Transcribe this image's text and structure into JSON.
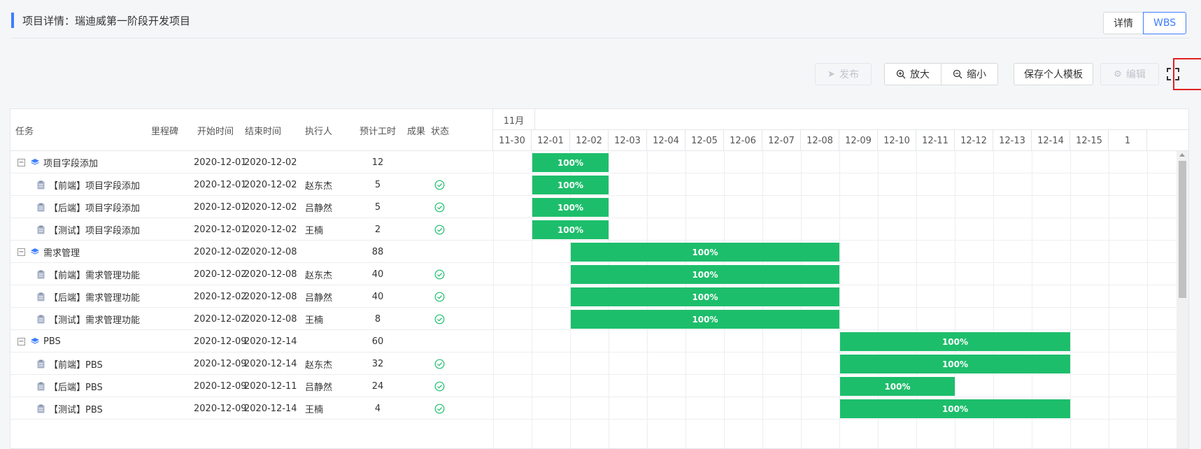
{
  "page": {
    "title": "项目详情：瑞迪威第一阶段开发项目"
  },
  "view_switch": {
    "detail_label": "详情",
    "wbs_label": "WBS",
    "active": "WBS"
  },
  "toolbar": {
    "publish_label": "发布",
    "zoom_in_label": "放大",
    "zoom_out_label": "缩小",
    "save_template_label": "保存个人模板",
    "edit_label": "编辑"
  },
  "columns": {
    "task": "任务",
    "milestone": "里程碑",
    "start": "开始时间",
    "end": "结束时间",
    "assignee": "执行人",
    "hours": "预计工时",
    "result": "成果",
    "status": "状态"
  },
  "timeline": {
    "month": "11月",
    "days": [
      "11-30",
      "12-01",
      "12-02",
      "12-03",
      "12-04",
      "12-05",
      "12-06",
      "12-07",
      "12-08",
      "12-09",
      "12-10",
      "12-11",
      "12-12",
      "12-13",
      "12-14",
      "12-15",
      "1"
    ]
  },
  "tasks": [
    {
      "name": "项目字段添加",
      "group": true,
      "start": "2020-12-01",
      "end": "2020-12-02",
      "assignee": "",
      "hours": "12",
      "done": false,
      "progress": "100%"
    },
    {
      "name": "【前端】项目字段添加",
      "group": false,
      "start": "2020-12-01",
      "end": "2020-12-02",
      "assignee": "赵东杰",
      "hours": "5",
      "done": true,
      "progress": "100%"
    },
    {
      "name": "【后端】项目字段添加",
      "group": false,
      "start": "2020-12-01",
      "end": "2020-12-02",
      "assignee": "吕静然",
      "hours": "5",
      "done": true,
      "progress": "100%"
    },
    {
      "name": "【测试】项目字段添加",
      "group": false,
      "start": "2020-12-01",
      "end": "2020-12-02",
      "assignee": "王楠",
      "hours": "2",
      "done": true,
      "progress": "100%"
    },
    {
      "name": "需求管理",
      "group": true,
      "start": "2020-12-02",
      "end": "2020-12-08",
      "assignee": "",
      "hours": "88",
      "done": false,
      "progress": "100%"
    },
    {
      "name": "【前端】需求管理功能",
      "group": false,
      "start": "2020-12-02",
      "end": "2020-12-08",
      "assignee": "赵东杰",
      "hours": "40",
      "done": true,
      "progress": "100%"
    },
    {
      "name": "【后端】需求管理功能",
      "group": false,
      "start": "2020-12-02",
      "end": "2020-12-08",
      "assignee": "吕静然",
      "hours": "40",
      "done": true,
      "progress": "100%"
    },
    {
      "name": "【测试】需求管理功能",
      "group": false,
      "start": "2020-12-02",
      "end": "2020-12-08",
      "assignee": "王楠",
      "hours": "8",
      "done": true,
      "progress": "100%"
    },
    {
      "name": "PBS",
      "group": true,
      "start": "2020-12-09",
      "end": "2020-12-14",
      "assignee": "",
      "hours": "60",
      "done": false,
      "progress": "100%"
    },
    {
      "name": "【前端】PBS",
      "group": false,
      "start": "2020-12-09",
      "end": "2020-12-14",
      "assignee": "赵东杰",
      "hours": "32",
      "done": true,
      "progress": "100%"
    },
    {
      "name": "【后端】PBS",
      "group": false,
      "start": "2020-12-09",
      "end": "2020-12-11",
      "assignee": "吕静然",
      "hours": "24",
      "done": true,
      "progress": "100%"
    },
    {
      "name": "【测试】PBS",
      "group": false,
      "start": "2020-12-09",
      "end": "2020-12-14",
      "assignee": "王楠",
      "hours": "4",
      "done": true,
      "progress": "100%"
    }
  ],
  "colors": {
    "accent": "#3d7eff",
    "bar": "#1dbe6b",
    "highlight": "#e02020"
  }
}
